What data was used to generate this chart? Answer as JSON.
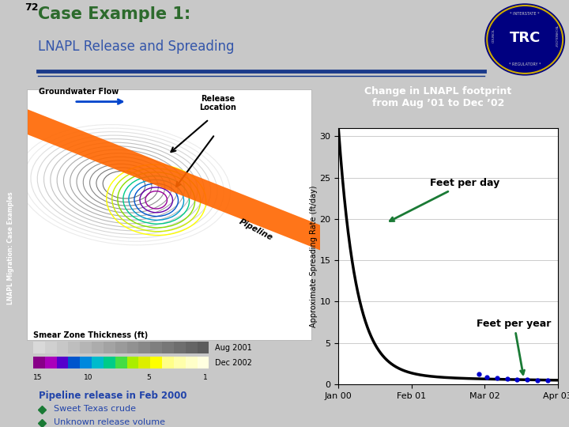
{
  "title_line1": "Case Example 1:",
  "title_line2": "LNAPL Release and Spreading",
  "page_num": "72",
  "bg_color": "#c8c8c8",
  "left_bar_color": "#2d6b2d",
  "title_color": "#2d6b2d",
  "subtitle_color": "#3355aa",
  "blue_line_color": "#1a3a8a",
  "green_box_color": "#1a6e35",
  "green_box_text": "Change in LNAPL footprint\nfrom Aug ’01 to Dec ’02",
  "chart_bg": "#ffffff",
  "curve_color": "#000000",
  "dot_color": "#0000cc",
  "annotation_color": "#1a7a35",
  "ylabel": "Approximate Spreading Rate (ft/day)",
  "yticks": [
    0,
    5,
    10,
    15,
    20,
    25,
    30
  ],
  "ylim": [
    0,
    31
  ],
  "xlabel_ticks": [
    "Jan 00",
    "Feb 01",
    "Mar 02",
    "Apr 03"
  ],
  "feet_per_day_text": "Feet per day",
  "feet_per_year_text": "Feet per year",
  "smear_text": "Smear Zone Thickness (ft)",
  "legend_aug": "Aug 2001",
  "legend_dec": "Dec 2002",
  "pipeline_text": "Pipeline release in Feb 2000",
  "bullet1": "Sweet Texas crude",
  "bullet2": "Unknown release volume",
  "gw_flow_text": "Groundwater Flow",
  "release_loc_text": "Release\nLocation",
  "pipeline_label": "Pipeline",
  "side_label": "LNAPL Migration: Case Examples",
  "smear_legend_values": [
    "15",
    "10",
    "5",
    "1"
  ]
}
